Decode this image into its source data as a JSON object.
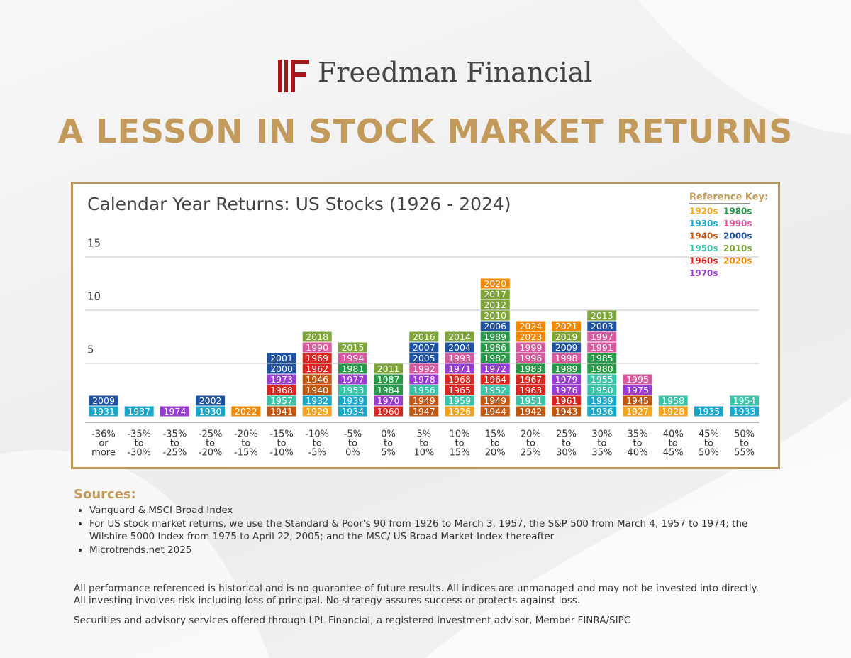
{
  "header": {
    "logo_text": "Freedman Financial",
    "title": "A LESSON IN STOCK MARKET RETURNS"
  },
  "chart_data": {
    "type": "bar",
    "title": "Calendar Year Returns: US Stocks (1926 - 2024)",
    "categories": [
      [
        "-36%",
        "or",
        "more"
      ],
      [
        "-35%",
        "to",
        "-30%"
      ],
      [
        "-35%",
        "to",
        "-25%"
      ],
      [
        "-25%",
        "to",
        "-20%"
      ],
      [
        "-20%",
        "to",
        "-15%"
      ],
      [
        "-15%",
        "to",
        "-10%"
      ],
      [
        "-10%",
        "to",
        "-5%"
      ],
      [
        "-5%",
        "to",
        "0%"
      ],
      [
        "0%",
        "to",
        "5%"
      ],
      [
        "5%",
        "to",
        "10%"
      ],
      [
        "10%",
        "to",
        "15%"
      ],
      [
        "15%",
        "to",
        "20%"
      ],
      [
        "20%",
        "to",
        "25%"
      ],
      [
        "25%",
        "to",
        "30%"
      ],
      [
        "30%",
        "to",
        "35%"
      ],
      [
        "35%",
        "to",
        "40%"
      ],
      [
        "40%",
        "to",
        "45%"
      ],
      [
        "45%",
        "to",
        "50%"
      ],
      [
        "50%",
        "to",
        "55%"
      ]
    ],
    "values": [
      2,
      1,
      1,
      2,
      1,
      6,
      8,
      7,
      5,
      8,
      8,
      13,
      9,
      9,
      10,
      4,
      2,
      1,
      2
    ],
    "years": [
      [
        1931,
        2009
      ],
      [
        1937
      ],
      [
        1974
      ],
      [
        1930,
        2002
      ],
      [
        2022
      ],
      [
        1941,
        1957,
        1968,
        1973,
        2000,
        2001
      ],
      [
        1929,
        1932,
        1940,
        1946,
        1962,
        1969,
        1990,
        2018
      ],
      [
        1934,
        1939,
        1953,
        1977,
        1981,
        1994,
        2015
      ],
      [
        1960,
        1970,
        1984,
        1987,
        2011
      ],
      [
        1947,
        1949,
        1956,
        1978,
        1992,
        2005,
        2007,
        2016
      ],
      [
        1926,
        1959,
        1965,
        1968,
        1971,
        1993,
        2004,
        2014
      ],
      [
        1944,
        1949,
        1952,
        1964,
        1972,
        1982,
        1986,
        1989,
        2006,
        2010,
        2012,
        2017,
        2020
      ],
      [
        1942,
        1951,
        1963,
        1967,
        1983,
        1996,
        1999,
        2023,
        2024
      ],
      [
        1943,
        1961,
        1976,
        1979,
        1989,
        1998,
        2009,
        2019,
        2021
      ],
      [
        1936,
        1939,
        1950,
        1955,
        1980,
        1985,
        1991,
        1997,
        2003,
        2013
      ],
      [
        1927,
        1945,
        1975,
        1995
      ],
      [
        1928,
        1958
      ],
      [
        1935
      ],
      [
        1933,
        1954
      ]
    ],
    "ylim": [
      0,
      15
    ],
    "yticks": [
      5,
      10,
      15
    ],
    "grid": true,
    "key_title": "Reference Key:",
    "key": [
      {
        "label": "1920s",
        "color": "#f3a51f"
      },
      {
        "label": "1930s",
        "color": "#19a6c9"
      },
      {
        "label": "1940s",
        "color": "#c0560f"
      },
      {
        "label": "1950s",
        "color": "#3dc3a8"
      },
      {
        "label": "1960s",
        "color": "#d9261e"
      },
      {
        "label": "1970s",
        "color": "#9a3dd2"
      },
      {
        "label": "1980s",
        "color": "#279949"
      },
      {
        "label": "1990s",
        "color": "#d65a9f"
      },
      {
        "label": "2000s",
        "color": "#1f52a0"
      },
      {
        "label": "2010s",
        "color": "#7ea43a"
      },
      {
        "label": "2020s",
        "color": "#f08900"
      }
    ]
  },
  "sources": {
    "title": "Sources:",
    "items": [
      "Vanguard & MSCI Broad Index",
      "For US stock market returns, we use the Standard & Poor's 90 from 1926 to March 3, 1957, the S&P 500 from March 4, 1957 to 1974; the Wilshire 5000 Index from 1975 to April 22, 2005; and the MSC/ US Broad Market Index thereafter",
      "Microtrends.net 2025"
    ]
  },
  "disclaimers": [
    "All performance referenced is historical and is no guarantee of future results. All indices are unmanaged and may not be invested into directly. All investing involves risk including loss of principal. No strategy assures success or protects against loss.",
    "Securities and advisory services offered through LPL Financial, a registered investment advisor, Member FINRA/SIPC"
  ]
}
